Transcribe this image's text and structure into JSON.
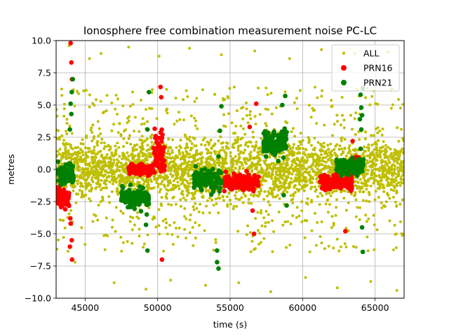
{
  "chart_data": {
    "type": "scatter",
    "title": "Ionosphere free combination measurement noise PC-LC",
    "xlabel": "time (s)",
    "ylabel": "metres",
    "xlim": [
      43000,
      67000
    ],
    "ylim": [
      -10.0,
      10.0
    ],
    "xticks": [
      45000,
      50000,
      55000,
      60000,
      65000
    ],
    "xtick_labels": [
      "45000",
      "50000",
      "55000",
      "60000",
      "65000"
    ],
    "yticks": [
      -10.0,
      -7.5,
      -5.0,
      -2.5,
      0.0,
      2.5,
      5.0,
      7.5,
      10.0
    ],
    "ytick_labels": [
      "−10.0",
      "−7.5",
      "−5.0",
      "−2.5",
      "0.0",
      "2.5",
      "5.0",
      "7.5",
      "10.0"
    ],
    "grid": true,
    "legend_position": "top-right",
    "series": [
      {
        "name": "ALL",
        "color": "#bfbf00",
        "marker": "small-dot",
        "noise_bands": [
          {
            "x": [
              43000,
              67000
            ],
            "center": 0.0,
            "spread": 1.5
          },
          {
            "x": [
              43000,
              67000
            ],
            "center": 0.0,
            "spread": 4.0
          }
        ],
        "outliers": [
          [
            43900,
            9.6
          ],
          [
            44300,
            -7.2
          ],
          [
            45300,
            8.6
          ],
          [
            46100,
            9.0
          ],
          [
            47000,
            -8.8
          ],
          [
            48000,
            9.5
          ],
          [
            49200,
            -9.3
          ],
          [
            50100,
            8.8
          ],
          [
            50900,
            -8.6
          ],
          [
            52200,
            9.4
          ],
          [
            53300,
            -9.0
          ],
          [
            54400,
            8.9
          ],
          [
            55600,
            -8.8
          ],
          [
            56700,
            9.2
          ],
          [
            57800,
            -9.5
          ],
          [
            59100,
            8.6
          ],
          [
            60200,
            -8.4
          ],
          [
            61300,
            9.3
          ],
          [
            62400,
            -9.2
          ],
          [
            63600,
            9.0
          ],
          [
            64700,
            -8.7
          ],
          [
            65900,
            9.1
          ],
          [
            66500,
            -9.4
          ]
        ]
      },
      {
        "name": "PRN16",
        "color": "#ff0000",
        "marker": "dot",
        "segments": [
          {
            "x": [
              43050,
              43900
            ],
            "center": -2.1,
            "spread": 0.7
          },
          {
            "x": [
              48000,
              49700
            ],
            "center": 0.0,
            "spread": 0.3
          },
          {
            "x": [
              49700,
              50500
            ],
            "center": 1.2,
            "spread": 1.2
          },
          {
            "x": [
              54600,
              57000
            ],
            "center": -1.0,
            "spread": 0.5
          },
          {
            "x": [
              61200,
              63400
            ],
            "center": -1.0,
            "spread": 0.4
          },
          {
            "x": [
              63400,
              63900
            ],
            "center": 0.4,
            "spread": 0.5
          }
        ],
        "points": [
          [
            44000,
            9.8
          ],
          [
            44050,
            8.3
          ],
          [
            44100,
            7.0
          ],
          [
            44100,
            -7.0
          ],
          [
            43950,
            -6.0
          ],
          [
            50200,
            6.4
          ],
          [
            50250,
            5.6
          ],
          [
            50300,
            -7.0
          ],
          [
            56800,
            5.1
          ],
          [
            56650,
            -5.0
          ],
          [
            56550,
            -3.2
          ],
          [
            56350,
            3.3
          ],
          [
            62950,
            -4.8
          ],
          [
            63450,
            2.2
          ],
          [
            44000,
            -4.2
          ],
          [
            44080,
            -5.5
          ],
          [
            43980,
            -3.8
          ]
        ]
      },
      {
        "name": "PRN21",
        "color": "#008000",
        "marker": "dot",
        "segments": [
          {
            "x": [
              43100,
              44200
            ],
            "center": -0.4,
            "spread": 0.6
          },
          {
            "x": [
              47500,
              49400
            ],
            "center": -2.2,
            "spread": 0.6
          },
          {
            "x": [
              52500,
              54400
            ],
            "center": -0.8,
            "spread": 0.7
          },
          {
            "x": [
              57300,
              58900
            ],
            "center": 2.0,
            "spread": 0.8
          },
          {
            "x": [
              62300,
              64200
            ],
            "center": 0.2,
            "spread": 0.5
          }
        ],
        "points": [
          [
            44000,
            5.1
          ],
          [
            44050,
            4.3
          ],
          [
            44080,
            6.0
          ],
          [
            44150,
            7.0
          ],
          [
            43950,
            3.1
          ],
          [
            49400,
            6.0
          ],
          [
            49300,
            -6.3
          ],
          [
            49200,
            -4.3
          ],
          [
            49300,
            3.1
          ],
          [
            49250,
            -3.5
          ],
          [
            54100,
            -7.2
          ],
          [
            54200,
            -7.7
          ],
          [
            54100,
            -6.3
          ],
          [
            54400,
            4.9
          ],
          [
            54300,
            3.0
          ],
          [
            58600,
            5.0
          ],
          [
            58800,
            5.7
          ],
          [
            58900,
            2.9
          ],
          [
            58900,
            -2.8
          ],
          [
            58700,
            -2.0
          ],
          [
            64000,
            5.8
          ],
          [
            64050,
            4.8
          ],
          [
            64100,
            4.2
          ],
          [
            64150,
            6.3
          ],
          [
            64100,
            -4.5
          ],
          [
            64150,
            -6.4
          ],
          [
            63950,
            3.9
          ],
          [
            64050,
            3.1
          ],
          [
            64000,
            1.6
          ]
        ]
      }
    ]
  }
}
